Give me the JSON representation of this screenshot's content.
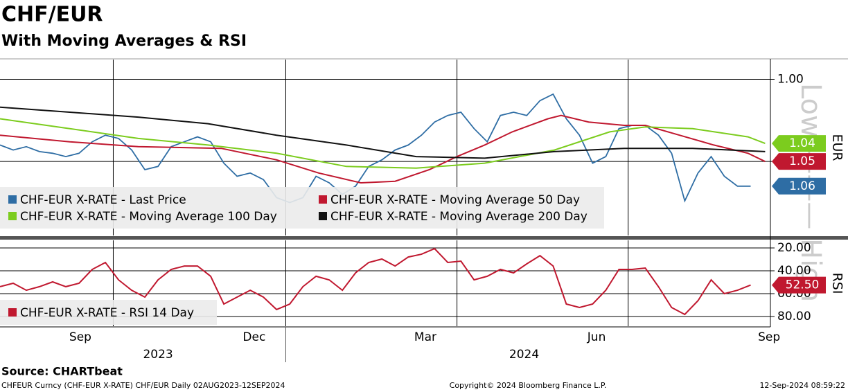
{
  "title": "CHF/EUR",
  "subtitle": "With Moving Averages & RSI",
  "source": "Source: CHARTbeat",
  "footer": {
    "left": "CHFEUR Curncy (CHF-EUR X-RATE) CHF/EUR  Daily 02AUG2023-12SEP2024",
    "center": "Copyright© 2024 Bloomberg Finance L.P.",
    "right": "12-Sep-2024 08:59:22"
  },
  "chart_data": [
    {
      "type": "line",
      "y_label": "EUR",
      "watermark": "Low ——— High",
      "inverted": true,
      "ylim": [
        0.988,
        1.095
      ],
      "yticks": [
        {
          "value": 1.0,
          "label": "1.00"
        },
        {
          "value": 1.05,
          "label": "1.05"
        }
      ],
      "series": [
        {
          "name": "CHF-EUR X-RATE - Last Price",
          "color": "#2e6da4",
          "last_label": "1.06",
          "x": [
            0,
            1,
            2,
            3,
            4,
            5,
            6,
            7,
            8,
            9,
            10,
            11,
            12,
            13,
            14,
            15,
            16,
            17,
            18,
            19,
            20,
            21,
            22,
            23,
            24,
            25,
            26,
            27,
            28,
            29,
            30,
            31,
            32,
            33,
            34,
            35,
            36,
            37,
            38,
            39,
            40,
            41,
            42,
            43,
            44,
            45,
            46,
            47,
            48,
            49,
            50,
            51,
            52,
            53,
            54,
            55,
            56,
            57
          ],
          "values": [
            1.04,
            1.043,
            1.041,
            1.044,
            1.045,
            1.047,
            1.045,
            1.038,
            1.034,
            1.036,
            1.043,
            1.055,
            1.053,
            1.041,
            1.038,
            1.035,
            1.038,
            1.051,
            1.059,
            1.057,
            1.061,
            1.072,
            1.075,
            1.072,
            1.059,
            1.063,
            1.07,
            1.065,
            1.053,
            1.049,
            1.043,
            1.04,
            1.034,
            1.026,
            1.022,
            1.02,
            1.03,
            1.038,
            1.022,
            1.02,
            1.022,
            1.013,
            1.009,
            1.024,
            1.034,
            1.051,
            1.047,
            1.03,
            1.028,
            1.028,
            1.034,
            1.045,
            1.074,
            1.057,
            1.047,
            1.059,
            1.065,
            1.065
          ]
        },
        {
          "name": "CHF-EUR X-RATE - Moving Average 50 Day",
          "color": "#c0182f",
          "last_label": "1.05",
          "x": [
            0,
            5.3,
            10.5,
            16.8,
            21,
            24.2,
            27.4,
            30,
            32.6,
            34.7,
            36.8,
            38.9,
            41.6,
            42.6,
            44.7,
            47.4,
            49,
            51.6,
            54.2,
            56.8,
            58.1
          ],
          "values": [
            1.034,
            1.038,
            1.041,
            1.042,
            1.049,
            1.057,
            1.063,
            1.062,
            1.055,
            1.047,
            1.04,
            1.032,
            1.024,
            1.022,
            1.026,
            1.028,
            1.028,
            1.034,
            1.04,
            1.045,
            1.05
          ]
        },
        {
          "name": "CHF-EUR X-RATE - Moving Average 100 Day",
          "color": "#7ccc1e",
          "last_label": "1.04",
          "x": [
            0,
            5.3,
            10.5,
            15.8,
            21,
            26.3,
            31.6,
            36.8,
            42.1,
            46.3,
            49,
            52.6,
            56.8,
            58.1
          ],
          "values": [
            1.024,
            1.03,
            1.036,
            1.04,
            1.045,
            1.053,
            1.054,
            1.051,
            1.043,
            1.032,
            1.029,
            1.03,
            1.035,
            1.039
          ]
        },
        {
          "name": "CHF-EUR X-RATE - Moving Average 200 Day",
          "color": "#111111",
          "x": [
            0,
            5.3,
            10.5,
            15.8,
            21,
            26.3,
            31.6,
            36.8,
            42.1,
            47.4,
            52.6,
            58.1
          ],
          "values": [
            1.017,
            1.02,
            1.023,
            1.027,
            1.034,
            1.04,
            1.047,
            1.048,
            1.044,
            1.042,
            1.042,
            1.044
          ]
        }
      ]
    },
    {
      "type": "line",
      "y_label": "RSI",
      "inverted": true,
      "ylim": [
        13.3,
        88.5
      ],
      "yticks": [
        {
          "value": 20,
          "label": "20.00"
        },
        {
          "value": 40,
          "label": "40.00"
        },
        {
          "value": 60,
          "label": "60.00"
        },
        {
          "value": 80,
          "label": "80.00"
        }
      ],
      "xlim": [
        0,
        58.5
      ],
      "xticks": [
        {
          "value": 6.1,
          "label": "Sep"
        },
        {
          "value": 19.3,
          "label": "Dec"
        },
        {
          "value": 32.3,
          "label": "Mar"
        },
        {
          "value": 45.3,
          "label": "Jun"
        },
        {
          "value": 58.4,
          "label": "Sep"
        }
      ],
      "xgrid": [
        8.6,
        21.7,
        34.7,
        47.7
      ],
      "years": [
        {
          "value": 12,
          "label": "2023"
        },
        {
          "value": 39.8,
          "label": "2024"
        }
      ],
      "year_divider": 21.7,
      "series": [
        {
          "name": "CHF-EUR X-RATE - RSI 14 Day",
          "color": "#c0182f",
          "last_label": "52.50",
          "x": [
            0,
            1,
            2,
            3,
            4,
            5,
            6,
            7,
            8,
            9,
            10,
            11,
            12,
            13,
            14,
            15,
            16,
            17,
            18,
            19,
            20,
            21,
            22,
            23,
            24,
            25,
            26,
            27,
            28,
            29,
            30,
            31,
            32,
            33,
            34,
            35,
            36,
            37,
            38,
            39,
            40,
            41,
            42,
            43,
            44,
            45,
            46,
            47,
            48,
            49,
            50,
            51,
            52,
            53,
            54,
            55,
            56,
            57
          ],
          "values": [
            53.9,
            50.9,
            57,
            53.9,
            49.7,
            53.9,
            50.9,
            38.8,
            32.7,
            47.9,
            57,
            63,
            47.9,
            38.8,
            35.8,
            35.8,
            44.8,
            69.1,
            63,
            57,
            63,
            73.9,
            69.1,
            53.9,
            44.8,
            47.9,
            57,
            41.8,
            32.7,
            29.7,
            35.8,
            27.9,
            25.5,
            20.6,
            32.7,
            31.5,
            47.9,
            44.8,
            38.8,
            41.8,
            33.9,
            26.7,
            35.8,
            69.1,
            72.1,
            69.1,
            57,
            38.8,
            38.8,
            37.6,
            53.9,
            72.1,
            78.2,
            66.1,
            47.9,
            60,
            57,
            52.5
          ]
        }
      ]
    }
  ]
}
